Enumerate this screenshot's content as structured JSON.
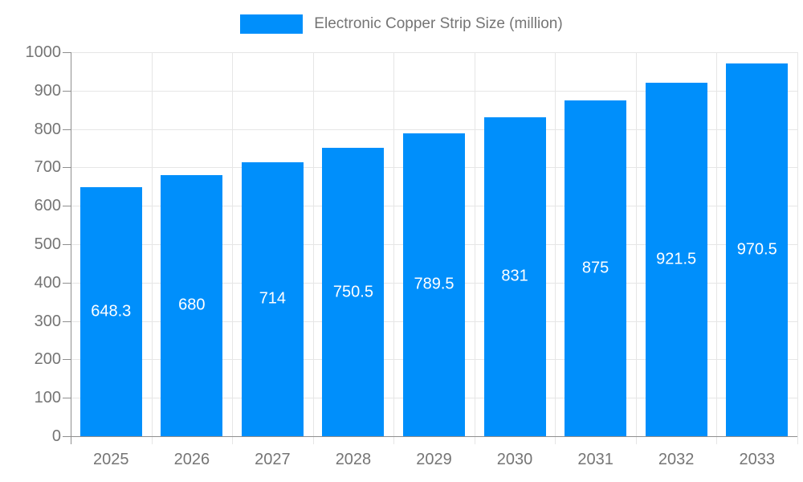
{
  "chart_data": {
    "type": "bar",
    "title": "Electronic Copper Strip Size (million)",
    "legend": {
      "position": "top-center",
      "entries": [
        "Electronic Copper Strip Size (million)"
      ]
    },
    "categories": [
      "2025",
      "2026",
      "2027",
      "2028",
      "2029",
      "2030",
      "2031",
      "2032",
      "2033"
    ],
    "values": [
      648.3,
      680,
      714,
      750.5,
      789.5,
      831,
      875,
      921.5,
      970.5
    ],
    "value_labels": [
      "648.3",
      "680",
      "714",
      "750.5",
      "789.5",
      "831",
      "875",
      "921.5",
      "970.5"
    ],
    "xlabel": "",
    "ylabel": "",
    "ylim": [
      0,
      1000
    ],
    "ytick_step": 100,
    "ytick_labels": [
      "0",
      "100",
      "200",
      "300",
      "400",
      "500",
      "600",
      "700",
      "800",
      "900",
      "1000"
    ],
    "grid": true,
    "colors": {
      "bar": "#008FFB",
      "gridline": "#E6E6E6",
      "axis_line": "#8F8F8F",
      "tick_text": "#757575",
      "legend_text": "#757575",
      "bar_label_text": "#FFFFFF",
      "background": "#FFFFFF"
    }
  }
}
